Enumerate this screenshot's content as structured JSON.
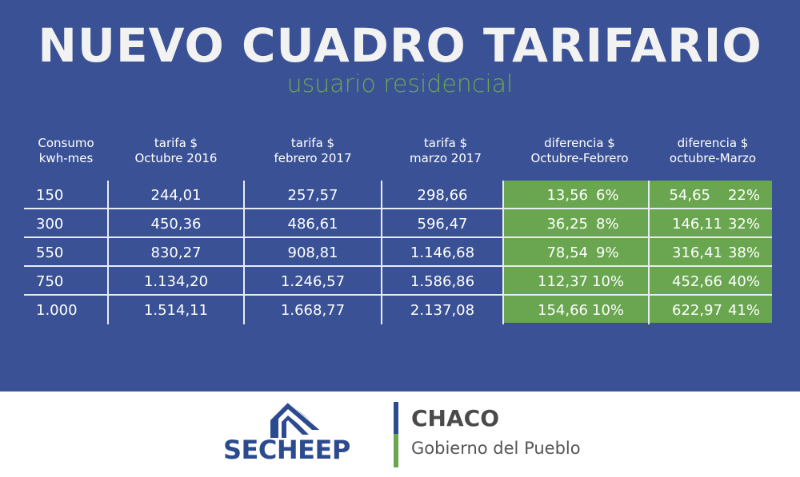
{
  "title": "NUEVO CUADRO TARIFARIO",
  "subtitle": "usuario residencial",
  "headers": [
    [
      "Consumo",
      "kwh-mes"
    ],
    [
      "tarifa $",
      "Octubre 2016"
    ],
    [
      "tarifa $",
      "febrero 2017"
    ],
    [
      "tarifa $",
      "marzo 2017"
    ],
    [
      "diferencia $",
      "Octubre-Febrero"
    ],
    [
      "diferencia $",
      "octubre-Marzo"
    ]
  ],
  "rows": [
    {
      "consumo": "150",
      "oct2016": "244,01",
      "feb2017": "257,57",
      "mar2017": "298,66",
      "dif_of": "13,56",
      "dif_of_pct": "6%",
      "dif_om": "54,65",
      "dif_om_pct": "22%"
    },
    {
      "consumo": "300",
      "oct2016": "450,36",
      "feb2017": "486,61",
      "mar2017": "596,47",
      "dif_of": "36,25",
      "dif_of_pct": "8%",
      "dif_om": "146,11",
      "dif_om_pct": "32%"
    },
    {
      "consumo": "550",
      "oct2016": "830,27",
      "feb2017": "908,81",
      "mar2017": "1.146,68",
      "dif_of": "78,54",
      "dif_of_pct": "9%",
      "dif_om": "316,41",
      "dif_om_pct": "38%"
    },
    {
      "consumo": "750",
      "oct2016": "1.134,20",
      "feb2017": "1.246,57",
      "mar2017": "1.586,86",
      "dif_of": "112,37",
      "dif_of_pct": "10%",
      "dif_om": "452,66",
      "dif_om_pct": "40%"
    },
    {
      "consumo": "1.000",
      "oct2016": "1.514,11",
      "feb2017": "1.668,77",
      "mar2017": "2.137,08",
      "dif_of": "154,66",
      "dif_of_pct": "10%",
      "dif_om": "622,97",
      "dif_om_pct": "41%"
    }
  ],
  "logos": {
    "secheep": "SECHEEP",
    "chaco": "CHACO",
    "chaco_tagline": "Gobierno del Pueblo"
  },
  "colors": {
    "background": "#3a5295",
    "title": "#f2f2f2",
    "subtitle": "#6aa84f",
    "highlight": "#6aa650",
    "secheep_blue": "#2c4a8e"
  }
}
